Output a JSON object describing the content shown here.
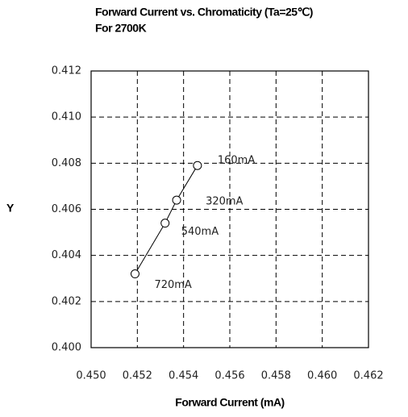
{
  "chart_data": {
    "type": "line",
    "title": "Forward Current vs. Chromaticity (Ta=25℃)",
    "subtitle": "For 2700K",
    "x_label": "Forward Current (mA)",
    "y_label": "Y",
    "x": [
      0.4546,
      0.4537,
      0.4532,
      0.4519
    ],
    "series": [
      {
        "color": "#000000",
        "values": [
          0.4079,
          0.4064,
          0.4054,
          0.4032
        ],
        "point_labels": [
          "160mA",
          "320mA",
          "540mA",
          "720mA"
        ]
      }
    ],
    "xlim": [
      0.45,
      0.462
    ],
    "xticks": [
      {
        "value": 0.45,
        "label": "0.450"
      },
      {
        "value": 0.452,
        "label": "0.452"
      },
      {
        "value": 0.454,
        "label": "0.454"
      },
      {
        "value": 0.456,
        "label": "0.456"
      },
      {
        "value": 0.458,
        "label": "0.458"
      },
      {
        "value": 0.46,
        "label": "0.460"
      },
      {
        "value": 0.462,
        "label": "0.462"
      }
    ],
    "ylim": [
      0.4,
      0.412
    ],
    "yticks": [
      {
        "value": 0.4,
        "label": "0.400"
      },
      {
        "value": 0.402,
        "label": "0.402"
      },
      0.404,
      0.406,
      0.408,
      {
        "value": 0.41,
        "label": "0.410"
      },
      0.412
    ],
    "grid": true
  }
}
